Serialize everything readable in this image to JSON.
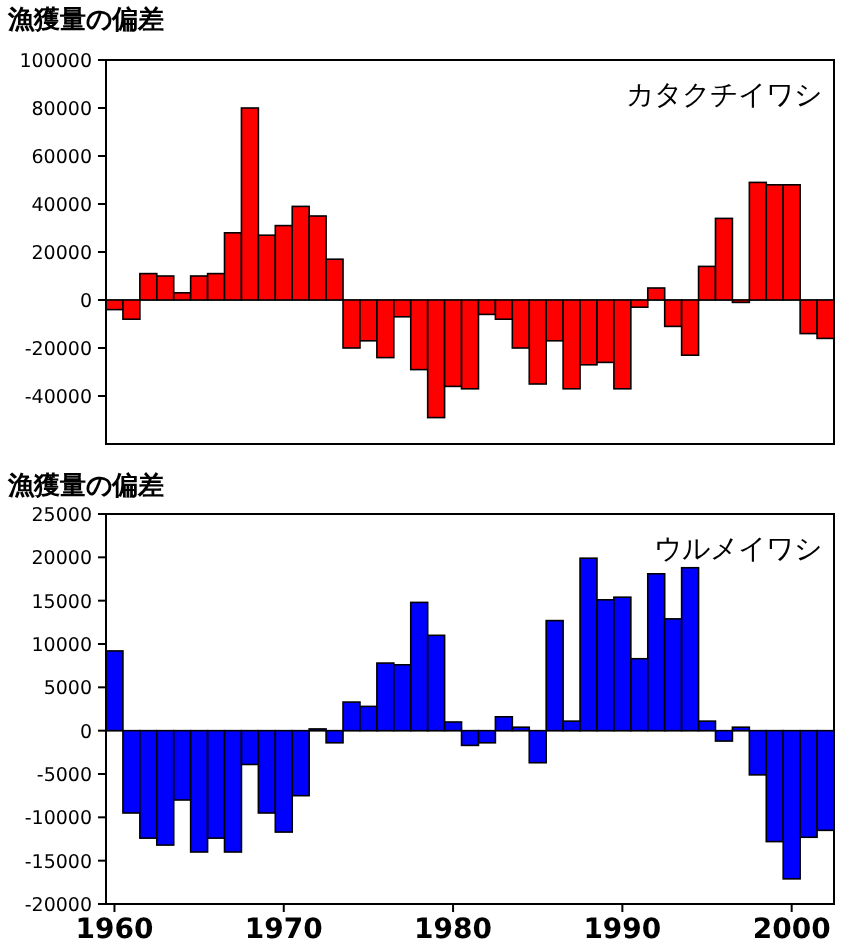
{
  "chart_data": [
    {
      "type": "bar",
      "title": "漁獲量の偏差",
      "annotations": [
        "カタクチイワシ"
      ],
      "x": [
        1960,
        1961,
        1962,
        1963,
        1964,
        1965,
        1966,
        1967,
        1968,
        1969,
        1970,
        1971,
        1972,
        1973,
        1974,
        1975,
        1976,
        1977,
        1978,
        1979,
        1980,
        1981,
        1982,
        1983,
        1984,
        1985,
        1986,
        1987,
        1988,
        1989,
        1990,
        1991,
        1992,
        1993,
        1994,
        1995,
        1996,
        1997,
        1998,
        1999,
        2000,
        2001,
        2002
      ],
      "series": [
        {
          "color": "#ff0000",
          "values": [
            -4000,
            -8000,
            11000,
            10000,
            3000,
            10000,
            11000,
            28000,
            80000,
            27000,
            31000,
            39000,
            35000,
            17000,
            -20000,
            -17000,
            -24000,
            -7000,
            -29000,
            -49000,
            -36000,
            -37000,
            -6000,
            -8000,
            -20000,
            -35000,
            -17000,
            -37000,
            -27000,
            -26000,
            -37000,
            -3000,
            5000,
            -11000,
            -23000,
            14000,
            34000,
            -1000,
            49000,
            48000,
            48000,
            -14000,
            -16000
          ]
        }
      ],
      "xlim": [
        1959.5,
        2002.5
      ],
      "ylim": [
        -60000,
        100000
      ],
      "yticks": [
        -40000,
        -20000,
        0,
        20000,
        40000,
        60000,
        80000,
        100000
      ],
      "tick_labels": "y"
    },
    {
      "type": "bar",
      "title": "漁獲量の偏差",
      "annotations": [
        "ウルメイワシ"
      ],
      "x": [
        1960,
        1961,
        1962,
        1963,
        1964,
        1965,
        1966,
        1967,
        1968,
        1969,
        1970,
        1971,
        1972,
        1973,
        1974,
        1975,
        1976,
        1977,
        1978,
        1979,
        1980,
        1981,
        1982,
        1983,
        1984,
        1985,
        1986,
        1987,
        1988,
        1989,
        1990,
        1991,
        1992,
        1993,
        1994,
        1995,
        1996,
        1997,
        1998,
        1999,
        2000,
        2001,
        2002
      ],
      "series": [
        {
          "color": "#0000ff",
          "values": [
            9200,
            -9500,
            -12400,
            -13200,
            -8000,
            -14000,
            -12400,
            -14000,
            -3900,
            -9500,
            -11700,
            -7500,
            200,
            -1400,
            3300,
            2800,
            7800,
            7600,
            14800,
            11000,
            1000,
            -1700,
            -1400,
            1600,
            400,
            -3700,
            12700,
            1100,
            19900,
            15100,
            15400,
            8300,
            18100,
            12900,
            18800,
            1100,
            -1200,
            400,
            -5100,
            -12800,
            -17100,
            -12300,
            -11500
          ]
        }
      ],
      "xlim": [
        1959.5,
        2002.5
      ],
      "xticks": [
        1960,
        1970,
        1980,
        1990,
        2000
      ],
      "ylim": [
        -20000,
        25000
      ],
      "yticks": [
        -20000,
        -15000,
        -10000,
        -5000,
        0,
        5000,
        10000,
        15000,
        20000,
        25000
      ]
    }
  ]
}
